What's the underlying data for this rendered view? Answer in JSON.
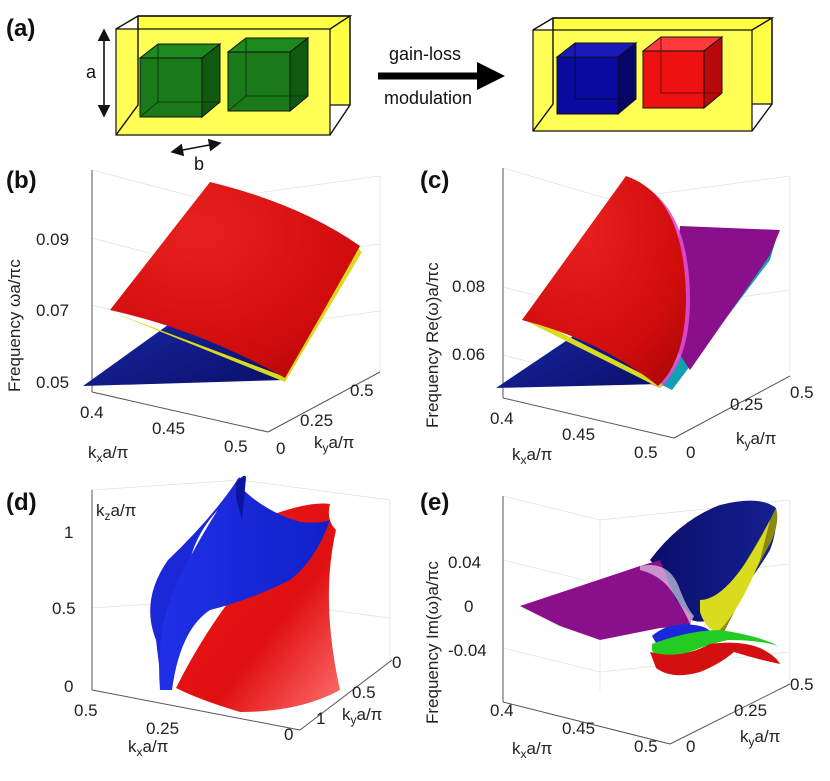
{
  "panel_a": {
    "label": "(a)",
    "dim_a": "a",
    "dim_b": "b",
    "arrow_top": "gain-loss",
    "arrow_bottom": "modulation",
    "colors": {
      "host": "#ffff44",
      "cube_before": "#1a7a1a",
      "cube_gain": "#0a0aa0",
      "cube_loss": "#ee1111"
    }
  },
  "panel_b": {
    "label": "(b)",
    "ylabel": "Frequency ωa/πc",
    "xlabel_main": "k",
    "xlabel_sub": "x",
    "xlabel_rest": "a/π",
    "ylabel2_main": "k",
    "ylabel2_sub": "y",
    "ylabel2_rest": "a/π",
    "z_ticks": [
      "0.09",
      "0.07",
      "0.05"
    ],
    "x_ticks": [
      "0.4",
      "0.45",
      "0.5"
    ],
    "y_ticks": [
      "0",
      "0.25",
      "0.5"
    ]
  },
  "panel_c": {
    "label": "(c)",
    "ylabel": "Frequency Re(ω)a/πc",
    "xlabel_main": "k",
    "xlabel_sub": "x",
    "xlabel_rest": "a/π",
    "ylabel2_main": "k",
    "ylabel2_sub": "y",
    "ylabel2_rest": "a/π",
    "z_ticks": [
      "0.08",
      "0.06"
    ],
    "x_ticks": [
      "0.4",
      "0.45",
      "0.5"
    ],
    "y_ticks": [
      "0",
      "0.25",
      "0.5"
    ]
  },
  "panel_d": {
    "label": "(d)",
    "zlabel_main": "k",
    "zlabel_sub": "z",
    "zlabel_rest": "a/π",
    "xlabel_main": "k",
    "xlabel_sub": "x",
    "xlabel_rest": "a/π",
    "ylabel2_main": "k",
    "ylabel2_sub": "y",
    "ylabel2_rest": "a/π",
    "z_ticks": [
      "1",
      "0.5",
      "0"
    ],
    "x_ticks": [
      "0.5",
      "0.25",
      "0"
    ],
    "y_ticks": [
      "0",
      "0.5",
      "1"
    ]
  },
  "panel_e": {
    "label": "(e)",
    "ylabel": "Frequency Im(ω)a/πc",
    "xlabel_main": "k",
    "xlabel_sub": "x",
    "xlabel_rest": "a/π",
    "ylabel2_main": "k",
    "ylabel2_sub": "y",
    "ylabel2_rest": "a/π",
    "z_ticks": [
      "0.04",
      "0",
      "-0.04"
    ],
    "x_ticks": [
      "0.4",
      "0.45",
      "0.5"
    ],
    "y_ticks": [
      "0",
      "0.25",
      "0.5"
    ]
  },
  "surface_colors": {
    "red": "#d40f0f",
    "blue": "#0d1a8c",
    "purple": "#8a0f8a",
    "cyan": "#14a0b4",
    "yellow": "#dada1e",
    "green": "#22cc22",
    "olive": "#8a8a10"
  }
}
